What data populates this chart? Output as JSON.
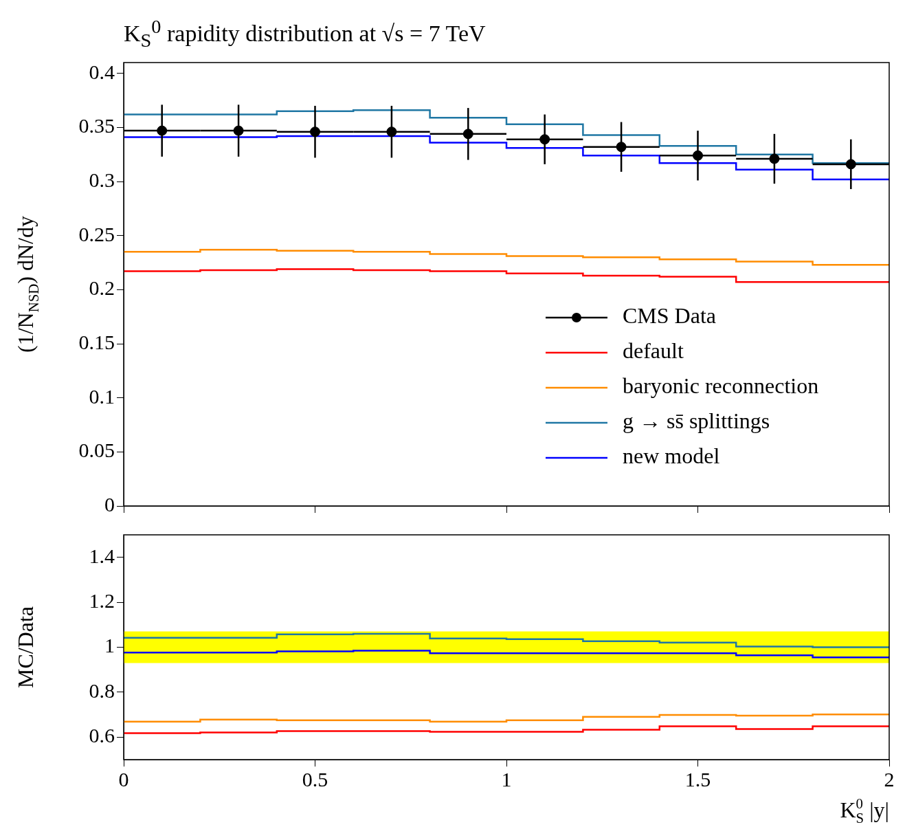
{
  "chart_data": [
    {
      "type": "histogram",
      "title": "K$_{S}$$^{0}$ rapidity distribution at √s = 7 TeV",
      "ylabel": "(1/N$_{NSD}$) dN/dy",
      "bins": [
        0,
        0.2,
        0.4,
        0.6,
        0.8,
        1,
        1.2,
        1.4,
        1.6,
        1.8,
        2
      ],
      "xlim": [
        0,
        2
      ],
      "ylim": [
        0,
        0.41
      ],
      "xticks": [
        0,
        0.5,
        1,
        1.5,
        2
      ],
      "yticks": [
        0,
        0.05,
        0.1,
        0.15,
        0.2,
        0.25,
        0.3,
        0.35,
        0.4
      ],
      "tick_labels": "y",
      "legend": "bottom right",
      "series": [
        {
          "name": "CMS Data",
          "type": "scatter",
          "marker": "circle",
          "color": "#000000",
          "x": [
            0.1,
            0.3,
            0.5,
            0.7,
            0.9,
            1.1,
            1.3,
            1.5,
            1.7,
            1.9
          ],
          "values": [
            0.347,
            0.347,
            0.346,
            0.346,
            0.344,
            0.339,
            0.332,
            0.324,
            0.321,
            0.316
          ],
          "errors": [
            0.024,
            0.024,
            0.024,
            0.024,
            0.024,
            0.023,
            0.023,
            0.023,
            0.023,
            0.023
          ],
          "xerrors": [
            0.1,
            0.1,
            0.1,
            0.1,
            0.1,
            0.1,
            0.1,
            0.1,
            0.1,
            0.1
          ]
        },
        {
          "name": "default",
          "color": "#ff0000",
          "values": [
            0.217,
            0.218,
            0.219,
            0.218,
            0.217,
            0.215,
            0.213,
            0.212,
            0.207,
            0.207
          ]
        },
        {
          "name": "baryonic reconnection",
          "color": "#ff8c00",
          "values": [
            0.235,
            0.237,
            0.236,
            0.235,
            0.233,
            0.231,
            0.23,
            0.228,
            0.226,
            0.223
          ]
        },
        {
          "name": "g → ss̄ splittings",
          "color": "#1f77a4",
          "values": [
            0.362,
            0.362,
            0.365,
            0.366,
            0.359,
            0.353,
            0.343,
            0.333,
            0.325,
            0.317
          ]
        },
        {
          "name": "new model",
          "color": "#0000ff",
          "values": [
            0.341,
            0.341,
            0.342,
            0.342,
            0.336,
            0.331,
            0.324,
            0.317,
            0.311,
            0.302
          ]
        }
      ]
    },
    {
      "type": "histogram",
      "ylabel": "MC/Data",
      "xlabel": "K$_{S}$$^{0}$ |y|",
      "bins": [
        0,
        0.2,
        0.4,
        0.6,
        0.8,
        1,
        1.2,
        1.4,
        1.6,
        1.8,
        2
      ],
      "xlim": [
        0,
        2
      ],
      "ylim": [
        0.5,
        1.5
      ],
      "xticks": [
        0,
        0.5,
        1,
        1.5,
        2
      ],
      "yticks": [
        0.6,
        0.8,
        1,
        1.2,
        1.4
      ],
      "bands": [
        {
          "axis": "y",
          "from": 0.93,
          "to": 1.07,
          "color": "#ffff00"
        }
      ],
      "series": [
        {
          "color": "#ff0000",
          "values": [
            0.618,
            0.621,
            0.627,
            0.627,
            0.624,
            0.624,
            0.633,
            0.648,
            0.636,
            0.648
          ]
        },
        {
          "color": "#ff8c00",
          "values": [
            0.669,
            0.678,
            0.675,
            0.675,
            0.669,
            0.675,
            0.69,
            0.699,
            0.696,
            0.701
          ]
        },
        {
          "color": "#1f77a4",
          "values": [
            1.042,
            1.042,
            1.057,
            1.06,
            1.039,
            1.036,
            1.027,
            1.021,
            1.003,
            1.0
          ]
        },
        {
          "color": "#0000ff",
          "values": [
            0.976,
            0.976,
            0.982,
            0.985,
            0.973,
            0.973,
            0.973,
            0.973,
            0.964,
            0.955
          ]
        }
      ]
    }
  ]
}
